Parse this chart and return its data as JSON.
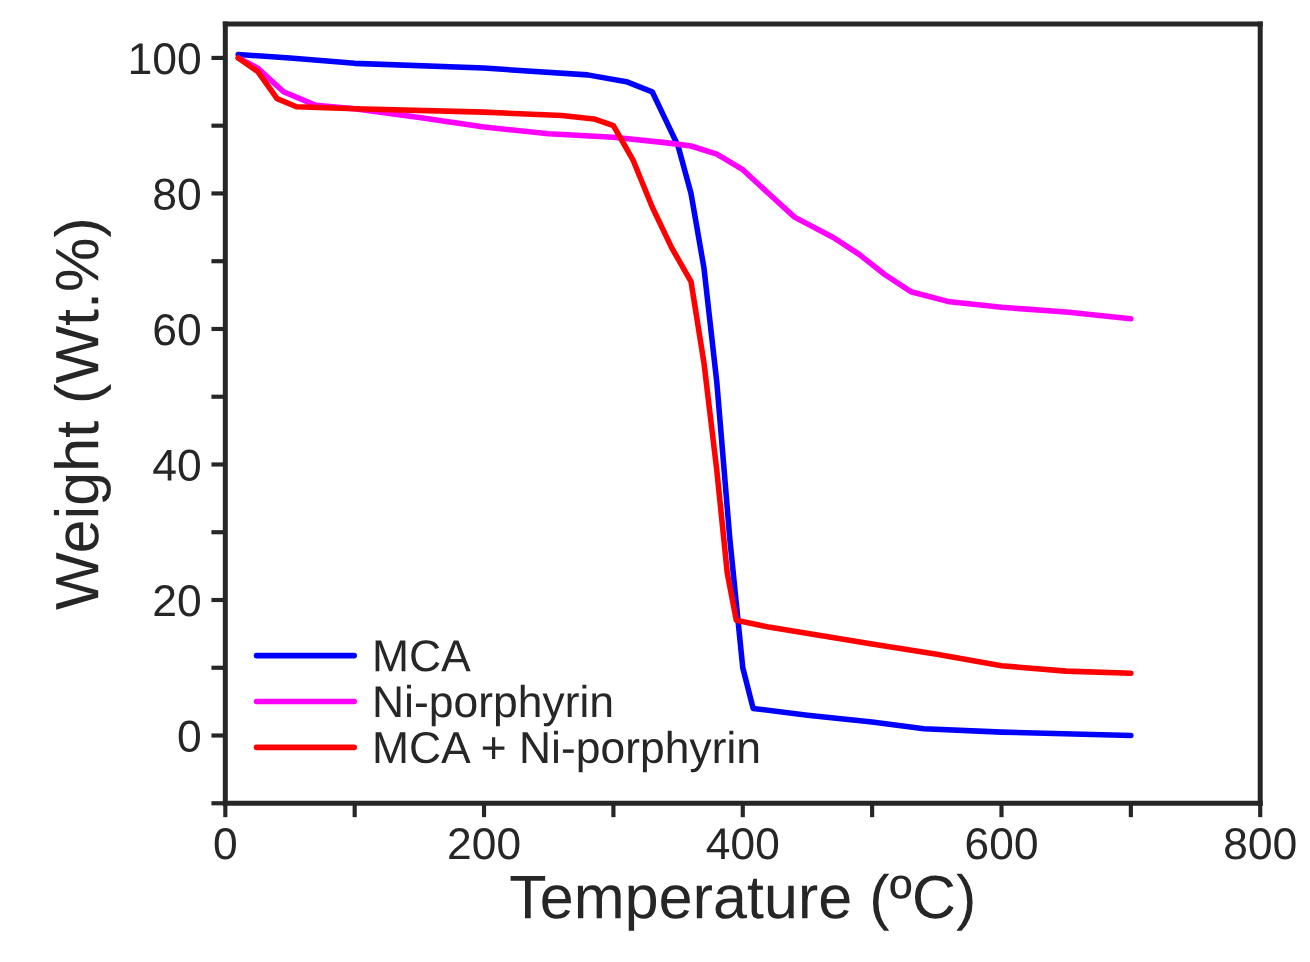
{
  "chart_data": {
    "type": "line",
    "xlabel": "Temperature (ºC)",
    "ylabel": "Weight (Wt.%)",
    "xlim": [
      0,
      800
    ],
    "ylim": [
      -10,
      105
    ],
    "xticks": [
      0,
      {
        "value": 100,
        "label": null
      },
      200,
      {
        "value": 300,
        "label": null
      },
      400,
      {
        "value": 500,
        "label": null
      },
      600,
      {
        "value": 700,
        "label": null
      },
      800
    ],
    "yticks": [
      {
        "value": -10,
        "label": null
      },
      0,
      {
        "value": 10,
        "label": null
      },
      20,
      {
        "value": 30,
        "label": null
      },
      40,
      {
        "value": 50,
        "label": null
      },
      60,
      {
        "value": 70,
        "label": null
      },
      80,
      {
        "value": 90,
        "label": null
      },
      100
    ],
    "grid": false,
    "legend": "bottom left",
    "line_style": "solid",
    "marker": "none",
    "series": [
      {
        "name": "MCA",
        "color": "#0000ff",
        "x": [
          10,
          50,
          100,
          200,
          280,
          310,
          330,
          340,
          350,
          360,
          370,
          380,
          390,
          400,
          408,
          450,
          500,
          540,
          600,
          700
        ],
        "values": [
          100.5,
          100,
          99.2,
          98.5,
          97.5,
          96.5,
          95,
          91,
          87,
          80,
          69,
          52,
          29,
          10,
          4,
          3,
          2,
          1,
          0.5,
          0
        ]
      },
      {
        "name": "Ni-porphyrin",
        "color": "#ff00ff",
        "x": [
          10,
          25,
          45,
          70,
          100,
          150,
          200,
          250,
          300,
          340,
          360,
          380,
          400,
          420,
          440,
          470,
          490,
          510,
          530,
          560,
          600,
          650,
          700
        ],
        "values": [
          100,
          98.5,
          95,
          93,
          92.5,
          91.2,
          89.8,
          88.8,
          88.3,
          87.5,
          87,
          85.8,
          83.5,
          80,
          76.5,
          73.5,
          71,
          68,
          65.5,
          64,
          63.2,
          62.5,
          61.5
        ]
      },
      {
        "name": "MCA + Ni-porphyrin",
        "color": "#ff0000",
        "x": [
          10,
          25,
          40,
          55,
          100,
          200,
          260,
          285,
          300,
          315,
          330,
          345,
          360,
          370,
          380,
          388,
          395,
          420,
          500,
          550,
          600,
          650,
          700
        ],
        "values": [
          100,
          98,
          94,
          92.8,
          92.5,
          92,
          91.5,
          91,
          90,
          85,
          78,
          72,
          67,
          55,
          39,
          24,
          17,
          16,
          13.5,
          12,
          10.3,
          9.5,
          9.2
        ]
      }
    ]
  }
}
